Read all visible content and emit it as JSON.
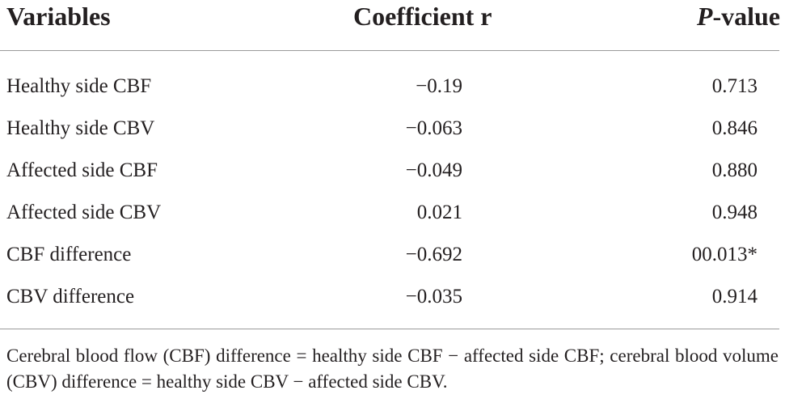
{
  "table": {
    "headers": {
      "variables": "Variables",
      "coefficient": "Coefficient r",
      "pvalue_italic": "P",
      "pvalue_rest": "-value"
    },
    "rows": [
      {
        "variable": "Healthy side CBF",
        "coefficient": "−0.19",
        "pvalue": "0.713"
      },
      {
        "variable": "Healthy side CBV",
        "coefficient": "−0.063",
        "pvalue": "0.846"
      },
      {
        "variable": "Affected side CBF",
        "coefficient": "−0.049",
        "pvalue": "0.880"
      },
      {
        "variable": "Affected side CBV",
        "coefficient": "0.021",
        "pvalue": "0.948"
      },
      {
        "variable": "CBF difference",
        "coefficient": "−0.692",
        "pvalue": "00.013*"
      },
      {
        "variable": "CBV difference",
        "coefficient": "−0.035",
        "pvalue": "0.914"
      }
    ],
    "footnote": "Cerebral blood flow (CBF) difference = healthy side CBF − affected side CBF; cerebral blood volume (CBV) difference = healthy side CBV − affected side CBV."
  }
}
